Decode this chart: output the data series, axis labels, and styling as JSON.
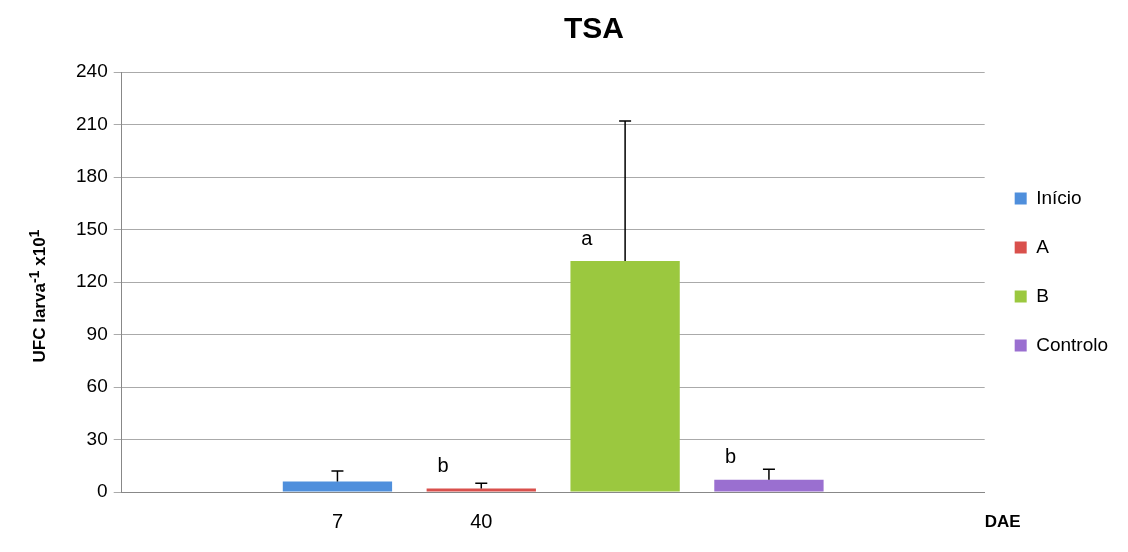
{
  "chart_data": {
    "type": "bar",
    "title": "TSA",
    "xlabel": "DAE",
    "ylabel": "UFC larva$^{-1}$ x10$^{1}$",
    "categories": [
      null,
      "7",
      "40",
      null,
      null,
      null
    ],
    "series": [
      {
        "name": "Início",
        "color": "#4f8fdc",
        "values": [
          null,
          6,
          null,
          null,
          null,
          null
        ],
        "errors": [
          null,
          [
            6,
            12
          ],
          null,
          null,
          null,
          null
        ]
      },
      {
        "name": "A",
        "color": "#d9504c",
        "values": [
          null,
          null,
          2,
          null,
          null,
          null
        ],
        "errors": [
          null,
          null,
          [
            2,
            5
          ],
          null,
          null,
          null
        ],
        "value_labels": [
          null,
          null,
          "b",
          null,
          null,
          null
        ]
      },
      {
        "name": "B",
        "color": "#9bc83f",
        "values": [
          null,
          null,
          null,
          132,
          null,
          null
        ],
        "errors": [
          null,
          null,
          null,
          [
            132,
            212
          ],
          null,
          null
        ],
        "value_labels": [
          null,
          null,
          null,
          "a",
          null,
          null
        ]
      },
      {
        "name": "Controlo",
        "color": "#9a6fd0",
        "values": [
          null,
          null,
          null,
          null,
          7,
          null
        ],
        "errors": [
          null,
          null,
          null,
          null,
          [
            7,
            13
          ],
          null
        ],
        "value_labels": [
          null,
          null,
          null,
          null,
          "b",
          null
        ]
      }
    ],
    "ylim": [
      0,
      240
    ],
    "yticks": [
      0,
      30,
      60,
      90,
      120,
      150,
      180,
      210,
      240
    ],
    "grid": "y",
    "legend": "right",
    "marker": "square"
  }
}
